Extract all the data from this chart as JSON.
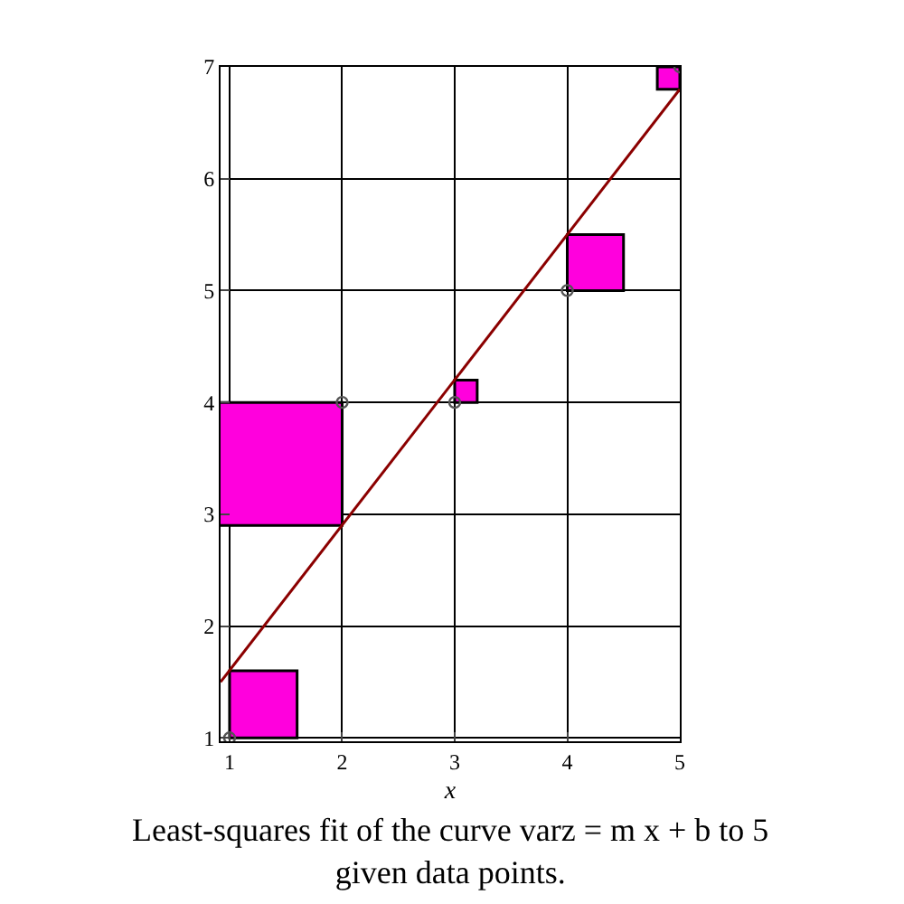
{
  "chart_data": {
    "type": "scatter",
    "title": "Least-squares fit of the curve varz = m x + b to 5 given data points.",
    "xlabel": "x",
    "series": [
      {
        "type": "bar",
        "x": [
          1.3,
          1.45,
          3.1,
          4.25,
          4.9
        ],
        "base": [
          1,
          2.9,
          4,
          5,
          6.8
        ],
        "values": [
          0.6,
          1.1,
          0.2,
          0.5,
          0.2
        ],
        "color": "#ff00dd"
      },
      {
        "type": "line",
        "x": [
          0.92,
          5
        ],
        "values": [
          1.5,
          6.8
        ],
        "color": "#8b0000"
      },
      {
        "x": [
          1,
          2,
          3,
          4,
          5
        ],
        "values": [
          1,
          4,
          4,
          5,
          7
        ],
        "color": "#555555",
        "marker": "circle"
      }
    ],
    "xlim": [
      0.92,
      5
    ],
    "ylim": [
      0.97,
      7
    ],
    "xticks": [
      1,
      2,
      3,
      4,
      5
    ],
    "yticks": [
      1,
      2,
      3,
      4,
      5,
      6,
      7
    ],
    "grid": true
  }
}
